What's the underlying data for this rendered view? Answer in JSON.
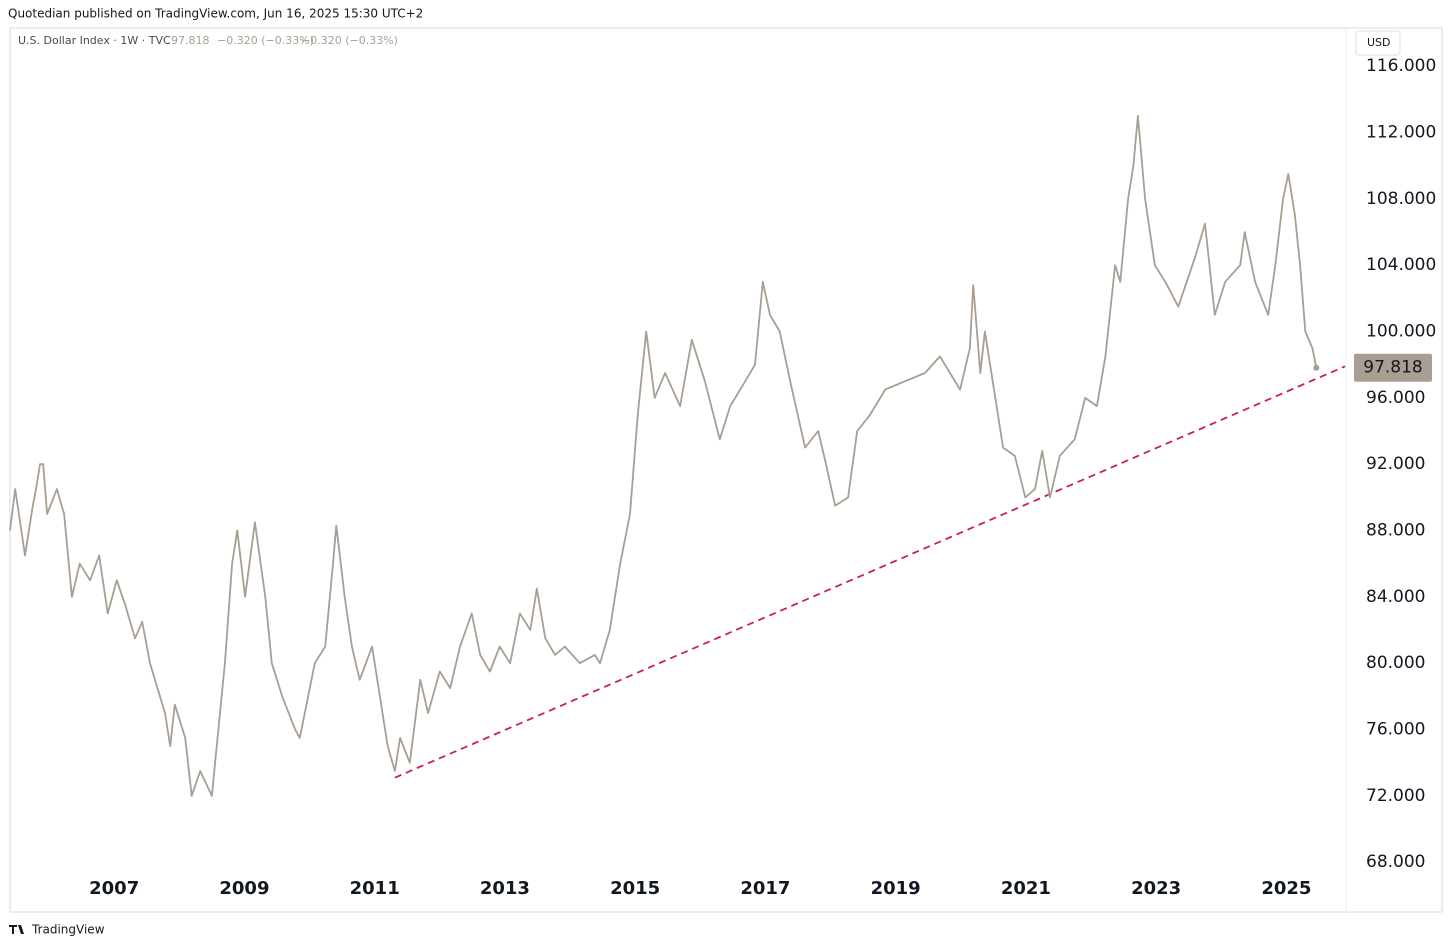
{
  "header": {
    "published": "Quotedian published on TradingView.com, Jun 16, 2025 15:30 UTC+2"
  },
  "footer": {
    "brand": "TradingView"
  },
  "chart_data": {
    "type": "line",
    "legend": {
      "symbol": "U.S. Dollar Index · 1W · TVC",
      "change": "−0.320 (−0.33%)"
    },
    "currency": "USD",
    "x": [
      2005.4,
      2005.48,
      2005.63,
      2005.75,
      2005.8,
      2005.86,
      2005.91,
      2005.97,
      2006.12,
      2006.23,
      2006.35,
      2006.47,
      2006.63,
      2006.77,
      2006.9,
      2007.04,
      2007.17,
      2007.32,
      2007.43,
      2007.55,
      2007.78,
      2007.86,
      2007.93,
      2008.09,
      2008.19,
      2008.32,
      2008.5,
      2008.55,
      2008.7,
      2008.81,
      2008.89,
      2009.01,
      2009.16,
      2009.32,
      2009.42,
      2009.58,
      2009.78,
      2009.85,
      2010.08,
      2010.24,
      2010.36,
      2010.41,
      2010.54,
      2010.65,
      2010.77,
      2010.96,
      2011.08,
      2011.2,
      2011.31,
      2011.39,
      2011.54,
      2011.7,
      2011.82,
      2012.0,
      2012.16,
      2012.31,
      2012.49,
      2012.62,
      2012.77,
      2012.92,
      2013.08,
      2013.23,
      2013.39,
      2013.49,
      2013.62,
      2013.77,
      2013.92,
      2014.15,
      2014.38,
      2014.46,
      2014.61,
      2014.77,
      2014.92,
      2015.04,
      2015.17,
      2015.3,
      2015.46,
      2015.69,
      2015.87,
      2016.07,
      2016.3,
      2016.46,
      2016.69,
      2016.84,
      2016.96,
      2017.07,
      2017.22,
      2017.38,
      2017.61,
      2017.81,
      2017.93,
      2018.07,
      2018.27,
      2018.41,
      2018.61,
      2018.84,
      2019.14,
      2019.45,
      2019.68,
      2019.99,
      2020.14,
      2020.19,
      2020.3,
      2020.37,
      2020.53,
      2020.65,
      2020.83,
      2020.99,
      2021.14,
      2021.25,
      2021.37,
      2021.52,
      2021.75,
      2021.91,
      2022.09,
      2022.22,
      2022.37,
      2022.45,
      2022.57,
      2022.65,
      2022.72,
      2022.83,
      2022.98,
      2023.14,
      2023.34,
      2023.6,
      2023.75,
      2023.9,
      2024.06,
      2024.29,
      2024.36,
      2024.52,
      2024.72,
      2024.83,
      2024.95,
      2025.03,
      2025.13,
      2025.21,
      2025.29,
      2025.4,
      2025.46
    ],
    "series": [
      {
        "name": "U.S. Dollar Index",
        "color": "#a89e92",
        "values": [
          88,
          90.5,
          86.5,
          89.5,
          90.5,
          92,
          92,
          89,
          90.5,
          89,
          84,
          86,
          85,
          86.5,
          83,
          85,
          83.5,
          81.5,
          82.5,
          80,
          77,
          75,
          77.5,
          75.5,
          72,
          73.5,
          72,
          74,
          80,
          86,
          88,
          84,
          88.5,
          84,
          80,
          78,
          76,
          75.5,
          80,
          81,
          86,
          88.3,
          84,
          81,
          79,
          81,
          78,
          75,
          73.5,
          75.5,
          74,
          79,
          77,
          79.5,
          78.5,
          81,
          83,
          80.5,
          79.5,
          81,
          80,
          83,
          82,
          84.5,
          81.5,
          80.5,
          81,
          80,
          80.5,
          80,
          82,
          86,
          89,
          95,
          100,
          96,
          97.5,
          95.5,
          99.5,
          97,
          93.5,
          95.5,
          97,
          98,
          103,
          101,
          100,
          97,
          93,
          94,
          92,
          89.5,
          90,
          94,
          95,
          96.5,
          97,
          97.5,
          98.5,
          96.5,
          99,
          102.8,
          97.5,
          100,
          96,
          93,
          92.5,
          90,
          90.5,
          92.8,
          90,
          92.5,
          93.5,
          96,
          95.5,
          98.5,
          104,
          103,
          108,
          110,
          113,
          108,
          104,
          103,
          101.5,
          104.5,
          106.5,
          101,
          103,
          104,
          106,
          103,
          101,
          104,
          108,
          109.5,
          107,
          104,
          100,
          99,
          97.818
        ]
      }
    ],
    "trendline": {
      "x": [
        2011.31,
        2025.9
      ],
      "y": [
        73.1,
        97.9
      ],
      "color": "#c8234f",
      "dashed": true
    },
    "price_label_color": "#a89e92",
    "xlim": [
      2005.4,
      2025.9
    ],
    "ylim": [
      65,
      118.3
    ],
    "xticks": [
      2007,
      2009,
      2011,
      2013,
      2015,
      2017,
      2019,
      2021,
      2023,
      2025
    ],
    "yticks": [
      {
        "value": 68,
        "label": "68.000"
      },
      {
        "value": 72,
        "label": "72.000"
      },
      {
        "value": 76,
        "label": "76.000"
      },
      {
        "value": 80,
        "label": "80.000"
      },
      {
        "value": 84,
        "label": "84.000"
      },
      {
        "value": 88,
        "label": "88.000"
      },
      {
        "value": 92,
        "label": "92.000"
      },
      {
        "value": 96,
        "label": "96.000"
      },
      {
        "value": 100,
        "label": "100.000"
      },
      {
        "value": 104,
        "label": "104.000"
      },
      {
        "value": 108,
        "label": "108.000"
      },
      {
        "value": 112,
        "label": "112.000"
      },
      {
        "value": 116,
        "label": "116.000"
      }
    ],
    "grid": false
  }
}
